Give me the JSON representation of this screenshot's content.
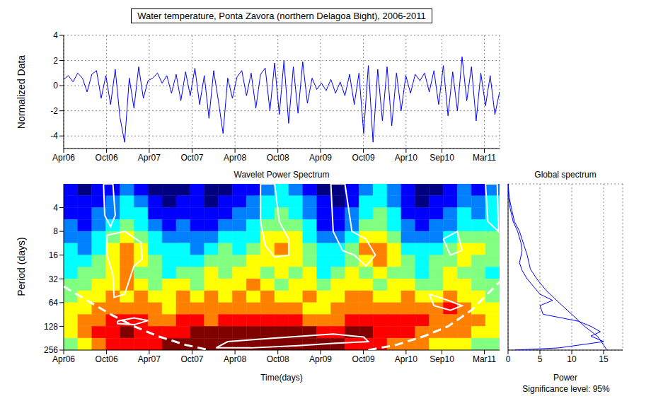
{
  "chart_data": [
    {
      "type": "line",
      "title": "Water temperature, Ponta Zavora (northern Delagoa Bight), 2006-2011",
      "ylabel": "Normalized Data",
      "x": [
        0,
        20,
        40,
        60,
        80,
        100,
        120,
        140,
        160,
        180,
        200,
        220,
        240,
        260,
        280,
        300,
        320,
        340,
        360,
        380,
        400,
        420,
        440,
        460,
        480,
        500,
        520,
        540,
        560,
        580,
        600,
        620,
        640,
        660,
        680,
        700,
        720,
        740,
        760,
        780,
        800,
        820,
        840,
        860,
        880,
        900,
        920,
        940,
        960,
        980,
        1000,
        1020,
        1040,
        1060,
        1080,
        1100,
        1120,
        1140,
        1160,
        1180,
        1200,
        1220,
        1240,
        1260,
        1280,
        1300,
        1320,
        1340,
        1360,
        1380,
        1400,
        1420,
        1440,
        1460,
        1480,
        1500,
        1520,
        1540,
        1560,
        1580,
        1600,
        1620,
        1640,
        1660,
        1680,
        1700,
        1720,
        1740,
        1760,
        1780,
        1800,
        1820,
        1840,
        1860
      ],
      "values": [
        0.5,
        0.8,
        0.3,
        1,
        0.6,
        -0.5,
        0.9,
        1.2,
        -1,
        0.8,
        -1.5,
        1.3,
        -2.5,
        -4.5,
        0.6,
        -1.8,
        1.5,
        -1,
        0.4,
        0.6,
        1,
        0.2,
        0.8,
        -0.6,
        0.9,
        -1.2,
        1.1,
        -0.8,
        1.4,
        -1.5,
        0.8,
        -2.6,
        1.2,
        -1.2,
        -3.8,
        0.6,
        -1,
        0.7,
        1.2,
        -0.8,
        1,
        -1.8,
        0.9,
        1.4,
        -2,
        1.8,
        -2.3,
        2,
        -3,
        1.5,
        -2.2,
        1.9,
        -1.4,
        0.6,
        -0.3,
        0.2,
        -0.4,
        0.5,
        -0.6,
        0.3,
        -0.8,
        0.9,
        -1.5,
        1,
        -3.8,
        1.6,
        -4.5,
        1.3,
        -2.8,
        1.5,
        -3.2,
        1,
        -2,
        0.8,
        -0.6,
        0.9,
        0.4,
        1,
        -0.5,
        1.2,
        -1.5,
        1.6,
        -2.4,
        1.1,
        -2,
        2.3,
        -1.2,
        1.5,
        -2.8,
        1,
        -1.6,
        0.8,
        -2.3,
        -0.5
      ],
      "color": "#0000ff",
      "xlim": [
        0,
        1860
      ],
      "xticks": [
        {
          "value": 0,
          "label": "Apr06"
        },
        {
          "value": 183,
          "label": "Oct06"
        },
        {
          "value": 365,
          "label": "Apr07"
        },
        {
          "value": 548,
          "label": "Oct07"
        },
        {
          "value": 731,
          "label": "Apr08"
        },
        {
          "value": 914,
          "label": "Oct08"
        },
        {
          "value": 1096,
          "label": "Apr09"
        },
        {
          "value": 1279,
          "label": "Oct09"
        },
        {
          "value": 1461,
          "label": "Apr10"
        },
        {
          "value": 1614,
          "label": "Sep10"
        },
        {
          "value": 1795,
          "label": "Mar11"
        }
      ],
      "ylim": [
        -5,
        4
      ],
      "yticks": [
        -4,
        -2,
        0,
        2,
        4
      ],
      "grid": true
    },
    {
      "type": "heatmap",
      "title": "Wavelet Power Spectrum",
      "xlabel": "Time(days)",
      "ylabel": "Period (days)",
      "log": "y",
      "xlim": [
        0,
        1860
      ],
      "xticks": [
        {
          "value": 0,
          "label": "Apr06"
        },
        {
          "value": 183,
          "label": "Oct06"
        },
        {
          "value": 365,
          "label": "Apr07"
        },
        {
          "value": 548,
          "label": "Oct07"
        },
        {
          "value": 731,
          "label": "Apr08"
        },
        {
          "value": 914,
          "label": "Oct08"
        },
        {
          "value": 1096,
          "label": "Apr09"
        },
        {
          "value": 1279,
          "label": "Oct09"
        },
        {
          "value": 1461,
          "label": "Apr10"
        },
        {
          "value": 1614,
          "label": "Sep10"
        },
        {
          "value": 1795,
          "label": "Mar11"
        }
      ],
      "ylim": [
        2,
        256
      ],
      "yticks": [
        4,
        8,
        16,
        32,
        64,
        128,
        256
      ],
      "time_edges": [
        0,
        60,
        120,
        180,
        240,
        300,
        360,
        420,
        480,
        540,
        600,
        660,
        720,
        780,
        840,
        900,
        960,
        1020,
        1080,
        1140,
        1200,
        1260,
        1320,
        1380,
        1440,
        1500,
        1560,
        1620,
        1680,
        1740,
        1800,
        1860
      ],
      "period_edges": [
        2,
        2.83,
        4,
        5.66,
        8,
        11.3,
        16,
        22.6,
        32,
        45.3,
        64,
        90.5,
        128,
        181,
        256
      ],
      "power_range": [
        0,
        8
      ],
      "power": [
        [
          1,
          0,
          1,
          1,
          2,
          1,
          0,
          0,
          0,
          1,
          0,
          0,
          1,
          1,
          2,
          3,
          2,
          1,
          0,
          0,
          1,
          2,
          3,
          2,
          1,
          0,
          0,
          1,
          2,
          1,
          2
        ],
        [
          1,
          1,
          1,
          2,
          3,
          2,
          1,
          0,
          1,
          1,
          0,
          1,
          1,
          2,
          3,
          3,
          3,
          2,
          1,
          0,
          1,
          3,
          3,
          2,
          1,
          0,
          1,
          1,
          2,
          2,
          3
        ],
        [
          1,
          1,
          2,
          2,
          3,
          3,
          1,
          1,
          1,
          1,
          1,
          1,
          2,
          2,
          3,
          4,
          3,
          2,
          1,
          1,
          2,
          3,
          4,
          3,
          1,
          1,
          1,
          2,
          3,
          2,
          3
        ],
        [
          2,
          1,
          2,
          3,
          4,
          3,
          2,
          1,
          2,
          1,
          1,
          2,
          2,
          3,
          4,
          4,
          4,
          3,
          1,
          1,
          2,
          4,
          4,
          3,
          2,
          1,
          2,
          2,
          3,
          3,
          3
        ],
        [
          2,
          2,
          3,
          4,
          5,
          4,
          3,
          2,
          2,
          2,
          2,
          3,
          3,
          3,
          5,
          5,
          5,
          3,
          2,
          2,
          3,
          5,
          5,
          4,
          2,
          2,
          2,
          3,
          4,
          4,
          4
        ],
        [
          3,
          2,
          3,
          5,
          6,
          5,
          3,
          3,
          3,
          2,
          3,
          4,
          3,
          4,
          5,
          6,
          5,
          4,
          3,
          3,
          4,
          6,
          6,
          5,
          3,
          3,
          3,
          4,
          5,
          5,
          4
        ],
        [
          3,
          3,
          4,
          5,
          6,
          5,
          4,
          3,
          3,
          3,
          4,
          4,
          4,
          5,
          5,
          5,
          5,
          4,
          3,
          3,
          4,
          5,
          6,
          5,
          4,
          3,
          4,
          4,
          5,
          4,
          4
        ],
        [
          3,
          4,
          4,
          5,
          6,
          4,
          4,
          3,
          4,
          4,
          5,
          4,
          5,
          5,
          4,
          5,
          4,
          5,
          3,
          4,
          5,
          4,
          5,
          4,
          4,
          3,
          4,
          5,
          4,
          4,
          3
        ],
        [
          4,
          4,
          5,
          5,
          6,
          5,
          4,
          5,
          5,
          4,
          5,
          5,
          5,
          6,
          5,
          4,
          5,
          5,
          4,
          5,
          5,
          5,
          4,
          5,
          5,
          4,
          4,
          5,
          5,
          4,
          4
        ],
        [
          4,
          5,
          5,
          6,
          5,
          6,
          5,
          5,
          6,
          5,
          6,
          5,
          6,
          5,
          6,
          5,
          5,
          6,
          5,
          5,
          6,
          6,
          5,
          5,
          6,
          5,
          5,
          6,
          5,
          5,
          4
        ],
        [
          5,
          5,
          6,
          6,
          6,
          6,
          6,
          5,
          6,
          6,
          6,
          6,
          6,
          6,
          6,
          6,
          6,
          5,
          5,
          6,
          6,
          6,
          6,
          6,
          6,
          6,
          6,
          7,
          6,
          5,
          5
        ],
        [
          5,
          6,
          6,
          7,
          7,
          7,
          6,
          6,
          7,
          7,
          6,
          7,
          7,
          7,
          7,
          7,
          7,
          6,
          6,
          6,
          7,
          7,
          7,
          7,
          7,
          7,
          6,
          6,
          6,
          6,
          5
        ],
        [
          5,
          6,
          7,
          7,
          8,
          7,
          7,
          7,
          7,
          8,
          8,
          8,
          8,
          8,
          8,
          8,
          8,
          8,
          7,
          7,
          8,
          8,
          7,
          7,
          7,
          6,
          6,
          6,
          6,
          5,
          5
        ],
        [
          4,
          5,
          6,
          7,
          7,
          7,
          7,
          8,
          8,
          8,
          8,
          8,
          8,
          8,
          8,
          8,
          8,
          8,
          8,
          8,
          7,
          7,
          7,
          6,
          6,
          6,
          5,
          5,
          5,
          4,
          4
        ]
      ],
      "significance_contours": {
        "color": "#ffffff",
        "polygons": [
          [
            [
              170,
              2
            ],
            [
              210,
              2
            ],
            [
              220,
              5
            ],
            [
              200,
              7
            ],
            [
              175,
              5
            ],
            [
              170,
              2
            ]
          ],
          [
            [
              185,
              9
            ],
            [
              260,
              8
            ],
            [
              330,
              11
            ],
            [
              335,
              18
            ],
            [
              300,
              22
            ],
            [
              260,
              50
            ],
            [
              215,
              55
            ],
            [
              210,
              28
            ],
            [
              185,
              16
            ],
            [
              185,
              9
            ]
          ],
          [
            [
              230,
              110
            ],
            [
              300,
              100
            ],
            [
              360,
              108
            ],
            [
              300,
              122
            ],
            [
              230,
              118
            ],
            [
              230,
              110
            ]
          ],
          [
            [
              650,
              240
            ],
            [
              700,
              200
            ],
            [
              900,
              180
            ],
            [
              1150,
              160
            ],
            [
              1280,
              175
            ],
            [
              1300,
              200
            ],
            [
              1150,
              210
            ],
            [
              1000,
              225
            ],
            [
              800,
              240
            ],
            [
              650,
              240
            ]
          ],
          [
            [
              840,
              2
            ],
            [
              900,
              2
            ],
            [
              920,
              6
            ],
            [
              960,
              10
            ],
            [
              960,
              16
            ],
            [
              900,
              17
            ],
            [
              860,
              12
            ],
            [
              840,
              6
            ],
            [
              840,
              2
            ]
          ],
          [
            [
              1140,
              2
            ],
            [
              1200,
              2
            ],
            [
              1230,
              8
            ],
            [
              1290,
              10
            ],
            [
              1330,
              16
            ],
            [
              1290,
              22
            ],
            [
              1240,
              16
            ],
            [
              1190,
              14
            ],
            [
              1150,
              8
            ],
            [
              1140,
              2
            ]
          ],
          [
            [
              1620,
              10
            ],
            [
              1680,
              8
            ],
            [
              1700,
              14
            ],
            [
              1650,
              16
            ],
            [
              1620,
              10
            ]
          ],
          [
            [
              1800,
              2
            ],
            [
              1850,
              2
            ],
            [
              1855,
              8
            ],
            [
              1810,
              6
            ],
            [
              1800,
              2
            ]
          ],
          [
            [
              1560,
              50
            ],
            [
              1640,
              60
            ],
            [
              1700,
              70
            ],
            [
              1650,
              80
            ],
            [
              1580,
              70
            ],
            [
              1560,
              50
            ]
          ]
        ]
      },
      "cone_of_influence": {
        "color": "#ffffff",
        "line_style": "dashed",
        "segments": [
          [
            [
              0,
              40
            ],
            [
              100,
              60
            ],
            [
              200,
              90
            ],
            [
              300,
              128
            ],
            [
              400,
              170
            ],
            [
              520,
              220
            ],
            [
              620,
              256
            ]
          ],
          [
            [
              1300,
              256
            ],
            [
              1420,
              220
            ],
            [
              1540,
              170
            ],
            [
              1640,
              128
            ],
            [
              1740,
              80
            ],
            [
              1860,
              35
            ]
          ]
        ]
      }
    },
    {
      "type": "line",
      "title": "Global spectrum",
      "xlabel": "Power",
      "annotation": "Significance level: 95%",
      "log": "y",
      "grid": true,
      "tick_labels": "x",
      "xlim": [
        0,
        18
      ],
      "xticks": [
        0,
        5,
        10,
        15
      ],
      "ylim": [
        2,
        256
      ],
      "yticks": [
        4,
        8,
        16,
        32,
        64,
        128,
        256
      ],
      "series": [
        {
          "color": "#0000ff",
          "x": [
            0,
            0.1,
            0.3,
            0.8,
            1.5,
            2,
            2.2,
            1.8,
            2.2,
            3,
            4,
            5,
            7,
            5,
            5.5,
            11,
            13,
            14.5,
            13,
            15,
            8,
            1
          ],
          "values": [
            2,
            3,
            4,
            6,
            8,
            11,
            14,
            20,
            25,
            32,
            40,
            50,
            60,
            70,
            90,
            110,
            128,
            150,
            170,
            200,
            240,
            256
          ]
        },
        {
          "color": "#0000ff",
          "x": [
            0,
            0.2,
            0.5,
            1,
            1.8,
            2.5,
            3,
            3.5,
            4.5,
            6,
            8,
            10,
            12,
            14,
            15,
            15.5
          ],
          "values": [
            2,
            3,
            4,
            6,
            8,
            12,
            16,
            24,
            32,
            45,
            64,
            90,
            128,
            170,
            220,
            256
          ]
        }
      ]
    }
  ]
}
